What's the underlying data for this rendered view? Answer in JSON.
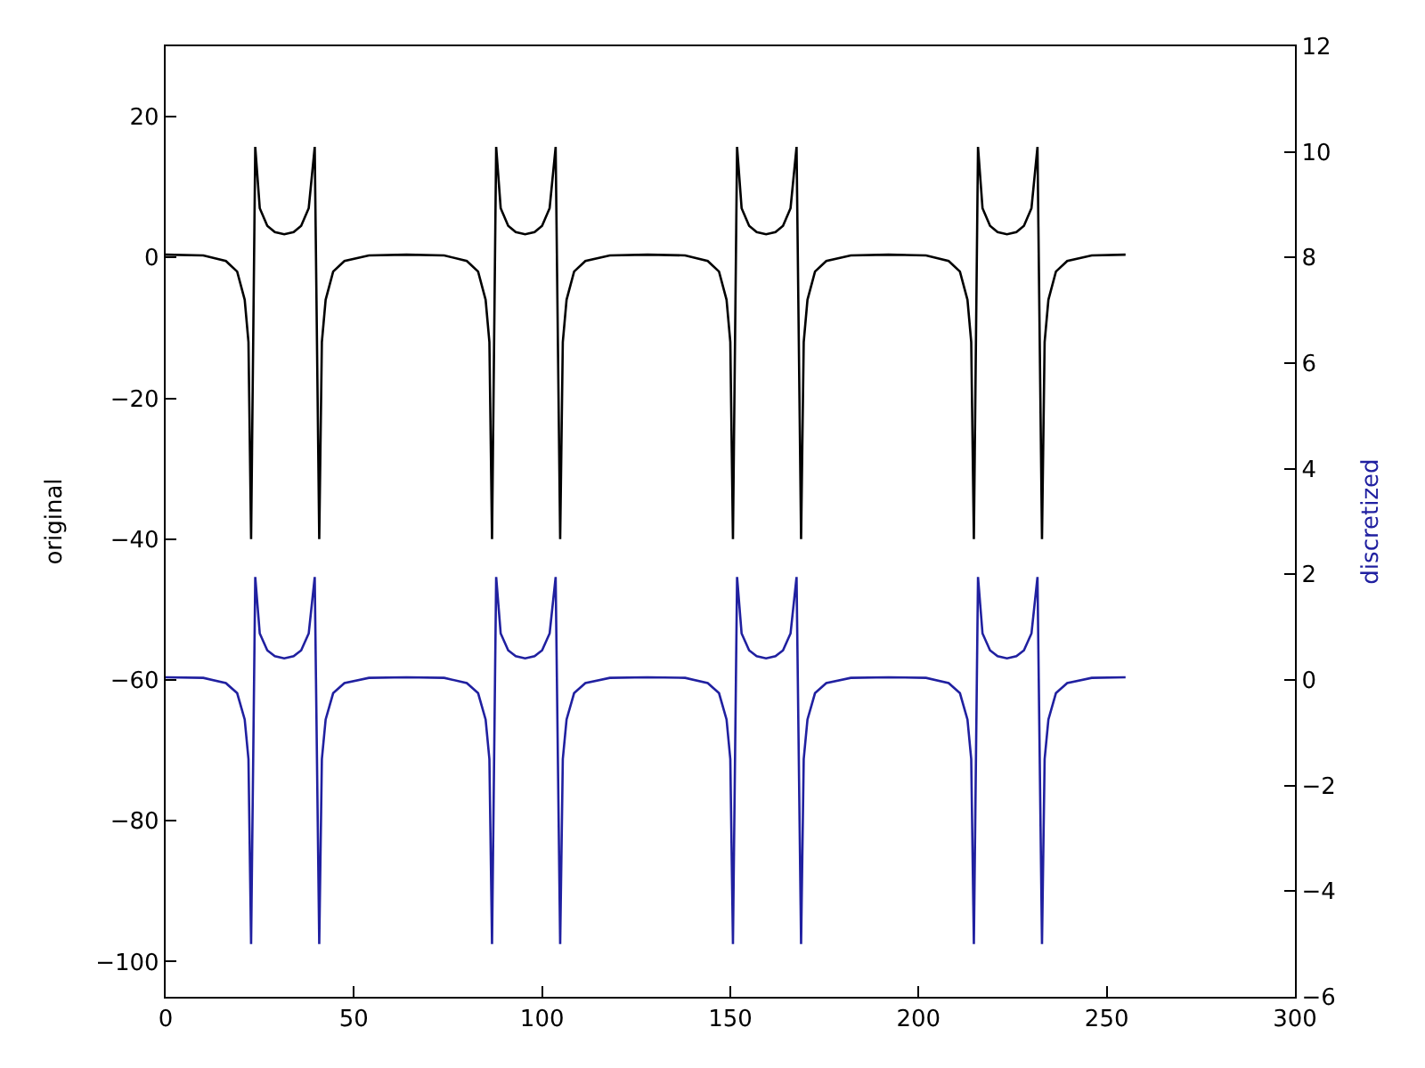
{
  "chart_data": {
    "type": "line",
    "ylabel": "original",
    "y2label": "discretized",
    "x": [
      0,
      10,
      16,
      19,
      21,
      22,
      22.7,
      23.8,
      25,
      27,
      29,
      31.5,
      34,
      36,
      38,
      39.6,
      40.8,
      41.5,
      42.5,
      44.5,
      47.5,
      54,
      64,
      74,
      80,
      83,
      85,
      86,
      86.7,
      87.8,
      89,
      91,
      93,
      95.5,
      98,
      100,
      102,
      103.6,
      104.8,
      105.5,
      106.5,
      108.5,
      111.5,
      118,
      128,
      138,
      144,
      147,
      149,
      150,
      150.7,
      151.8,
      153,
      155,
      157,
      159.5,
      162,
      164,
      166,
      167.6,
      168.8,
      169.5,
      170.5,
      172.5,
      175.5,
      182,
      192,
      202,
      208,
      211,
      213,
      214,
      214.7,
      215.8,
      217,
      219,
      221,
      223.5,
      226,
      228,
      230,
      231.6,
      232.8,
      233.5,
      234.5,
      236.5,
      239.5,
      246,
      255
    ],
    "series": [
      {
        "color": "#000000",
        "values": [
          0.4,
          0.3,
          -0.5,
          -2,
          -6,
          -12,
          -40,
          15.7,
          7,
          4.5,
          3.6,
          3.3,
          3.6,
          4.5,
          7,
          15.7,
          -40,
          -12,
          -6,
          -2,
          -0.5,
          0.3,
          0.4,
          0.3,
          -0.5,
          -2,
          -6,
          -12,
          -40,
          15.7,
          7,
          4.5,
          3.6,
          3.3,
          3.6,
          4.5,
          7,
          15.7,
          -40,
          -12,
          -6,
          -2,
          -0.5,
          0.3,
          0.4,
          0.3,
          -0.5,
          -2,
          -6,
          -12,
          -40,
          15.7,
          7,
          4.5,
          3.6,
          3.3,
          3.6,
          4.5,
          7,
          15.7,
          -40,
          -12,
          -6,
          -2,
          -0.5,
          0.3,
          0.4,
          0.3,
          -0.5,
          -2,
          -6,
          -12,
          -40,
          15.7,
          7,
          4.5,
          3.6,
          3.3,
          3.6,
          4.5,
          7,
          15.7,
          -40,
          -12,
          -6,
          -2,
          -0.5,
          0.3,
          0.4
        ]
      },
      {
        "color": "#2020a0",
        "axis": "y2",
        "values": [
          0.05,
          0.04,
          -0.06,
          -0.25,
          -0.75,
          -1.5,
          -5,
          1.95,
          0.88,
          0.56,
          0.45,
          0.41,
          0.45,
          0.56,
          0.88,
          1.95,
          -5,
          -1.5,
          -0.75,
          -0.25,
          -0.06,
          0.04,
          0.05,
          0.04,
          -0.06,
          -0.25,
          -0.75,
          -1.5,
          -5,
          1.95,
          0.88,
          0.56,
          0.45,
          0.41,
          0.45,
          0.56,
          0.88,
          1.95,
          -5,
          -1.5,
          -0.75,
          -0.25,
          -0.06,
          0.04,
          0.05,
          0.04,
          -0.06,
          -0.25,
          -0.75,
          -1.5,
          -5,
          1.95,
          0.88,
          0.56,
          0.45,
          0.41,
          0.45,
          0.56,
          0.88,
          1.95,
          -5,
          -1.5,
          -0.75,
          -0.25,
          -0.06,
          0.04,
          0.05,
          0.04,
          -0.06,
          -0.25,
          -0.75,
          -1.5,
          -5,
          1.95,
          0.88,
          0.56,
          0.45,
          0.41,
          0.45,
          0.56,
          0.88,
          1.95,
          -5,
          -1.5,
          -0.75,
          -0.25,
          -0.06,
          0.04,
          0.05
        ]
      }
    ],
    "xlim": [
      0,
      300
    ],
    "xticks": [
      0,
      50,
      100,
      150,
      200,
      250,
      300
    ],
    "ylim": [
      -105,
      30
    ],
    "yticks": [
      -100,
      -80,
      -60,
      -40,
      -20,
      0,
      20
    ],
    "y2lim": [
      -6,
      12
    ],
    "y2ticks": [
      -6,
      -4,
      -2,
      0,
      2,
      4,
      6,
      8,
      10,
      12
    ],
    "line_style": "solid",
    "marker": "none"
  }
}
